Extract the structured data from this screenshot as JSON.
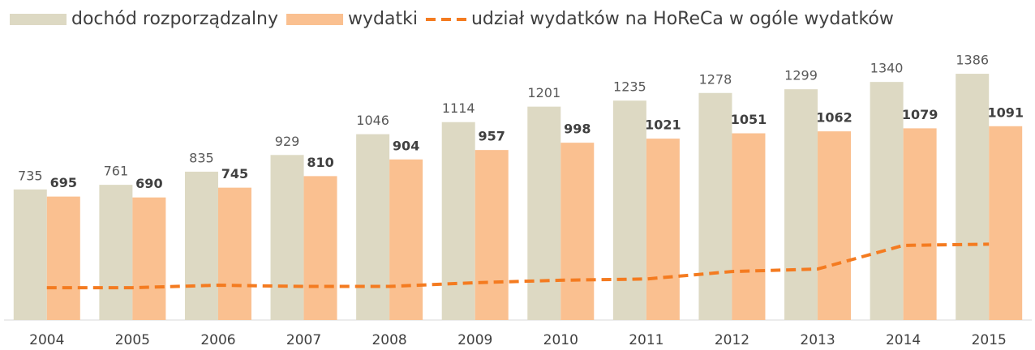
{
  "chart_data": {
    "type": "bar",
    "categories": [
      "2004",
      "2005",
      "2006",
      "2007",
      "2008",
      "2009",
      "2010",
      "2011",
      "2012",
      "2013",
      "2014",
      "2015"
    ],
    "series": [
      {
        "name": "dochód rozporządzalny",
        "color": "#ddd9c3",
        "values": [
          735,
          761,
          835,
          929,
          1046,
          1114,
          1201,
          1235,
          1278,
          1299,
          1340,
          1386
        ]
      },
      {
        "name": "wydatki",
        "color": "#fac090",
        "values": [
          695,
          690,
          745,
          810,
          904,
          957,
          998,
          1021,
          1051,
          1062,
          1079,
          1091
        ]
      },
      {
        "name": "udział wydatków na HoReCa w ogóle wydatków",
        "color": "#f47b20",
        "type": "line",
        "dashed": true,
        "axis": "y2",
        "values": [
          1.3,
          1.3,
          1.4,
          1.35,
          1.35,
          1.5,
          1.6,
          1.65,
          1.95,
          2.05,
          3.0,
          3.05
        ]
      }
    ],
    "ylim": [
      0,
      1400
    ],
    "y2lim": [
      0,
      10
    ],
    "legend": "top",
    "data_labels": true
  }
}
